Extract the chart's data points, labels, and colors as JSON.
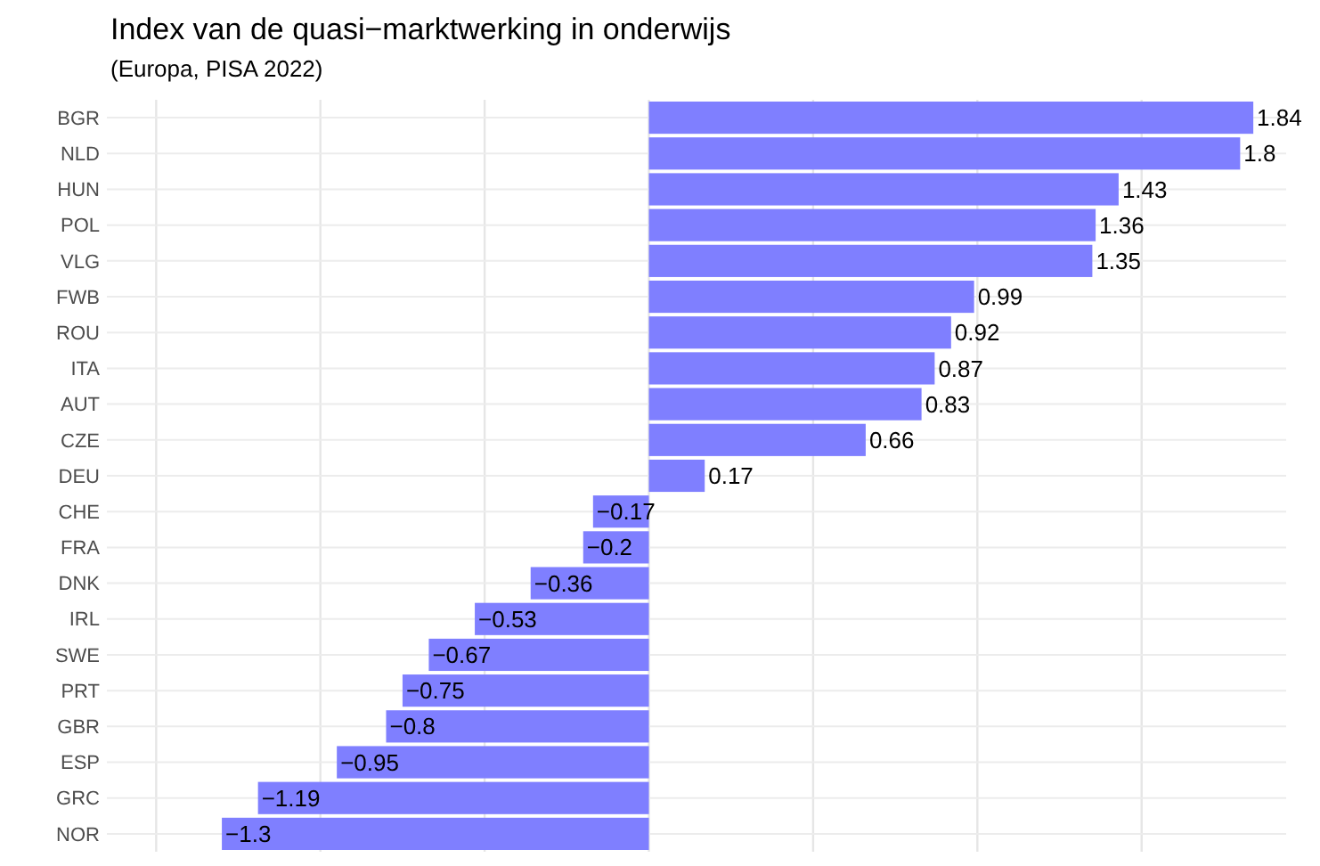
{
  "chart_data": {
    "type": "bar",
    "orientation": "horizontal",
    "title": "Index van de quasi−marktwerking in onderwijs",
    "subtitle": "(Europa, PISA 2022)",
    "categories": [
      "BGR",
      "NLD",
      "HUN",
      "POL",
      "VLG",
      "FWB",
      "ROU",
      "ITA",
      "AUT",
      "CZE",
      "DEU",
      "CHE",
      "FRA",
      "DNK",
      "IRL",
      "SWE",
      "PRT",
      "GBR",
      "ESP",
      "GRC",
      "NOR"
    ],
    "values": [
      1.84,
      1.8,
      1.43,
      1.36,
      1.35,
      0.99,
      0.92,
      0.87,
      0.83,
      0.66,
      0.17,
      -0.17,
      -0.2,
      -0.36,
      -0.53,
      -0.67,
      -0.75,
      -0.8,
      -0.95,
      -1.19,
      -1.3
    ],
    "color": "#7f7fff",
    "data_labels": true,
    "grid": true,
    "tick_labels": "y",
    "xlim": [
      -1.65,
      1.94
    ],
    "xticks": [
      {
        "value": -1.5,
        "label": null
      },
      {
        "value": -1,
        "label": null
      },
      {
        "value": -0.5,
        "label": null
      },
      {
        "value": 0,
        "label": null
      },
      {
        "value": 0.5,
        "label": null
      },
      {
        "value": 1,
        "label": null
      },
      {
        "value": 1.5,
        "label": null
      }
    ]
  }
}
